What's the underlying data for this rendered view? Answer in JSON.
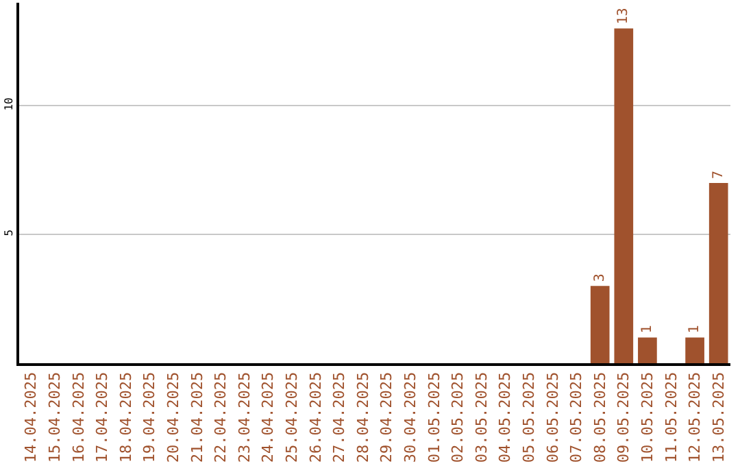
{
  "chart_data": {
    "type": "bar",
    "categories": [
      "14.04.2025",
      "15.04.2025",
      "16.04.2025",
      "17.04.2025",
      "18.04.2025",
      "19.04.2025",
      "20.04.2025",
      "21.04.2025",
      "22.04.2025",
      "23.04.2025",
      "24.04.2025",
      "25.04.2025",
      "26.04.2025",
      "27.04.2025",
      "28.04.2025",
      "29.04.2025",
      "30.04.2025",
      "01.05.2025",
      "02.05.2025",
      "03.05.2025",
      "04.05.2025",
      "05.05.2025",
      "06.05.2025",
      "07.05.2025",
      "08.05.2025",
      "09.05.2025",
      "10.05.2025",
      "11.05.2025",
      "12.05.2025",
      "13.05.2025"
    ],
    "values": [
      0,
      0,
      0,
      0,
      0,
      0,
      0,
      0,
      0,
      0,
      0,
      0,
      0,
      0,
      0,
      0,
      0,
      0,
      0,
      0,
      0,
      0,
      0,
      0,
      3,
      13,
      1,
      0,
      1,
      7
    ],
    "value_labels": [
      null,
      null,
      null,
      null,
      null,
      null,
      null,
      null,
      null,
      null,
      null,
      null,
      null,
      null,
      null,
      null,
      null,
      null,
      null,
      null,
      null,
      null,
      null,
      null,
      "3",
      "13",
      "1",
      null,
      "1",
      "7"
    ],
    "color": "#a0522d",
    "ylim": [
      0,
      14
    ],
    "yticks": [
      5,
      10
    ],
    "grid": "y",
    "legend": false
  }
}
